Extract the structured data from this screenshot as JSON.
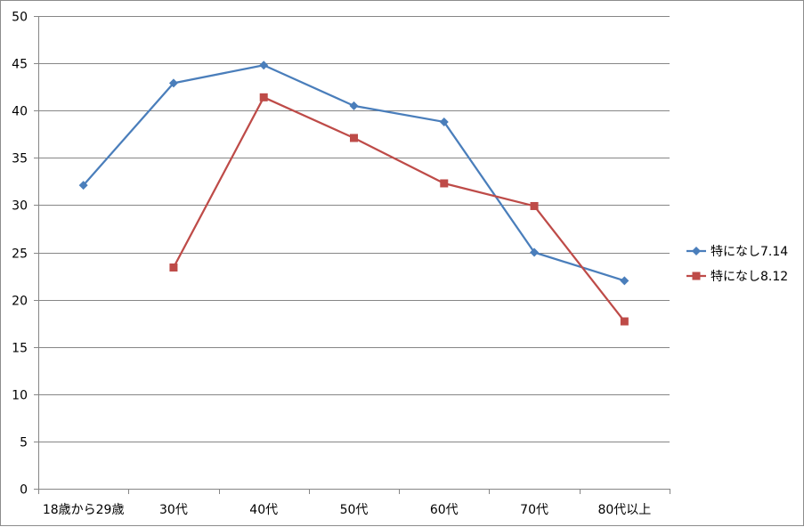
{
  "chart_data": {
    "type": "line",
    "categories": [
      "18歳から29歳",
      "30代",
      "40代",
      "50代",
      "60代",
      "70代",
      "80代以上"
    ],
    "series": [
      {
        "name": "特になし7.14",
        "color": "#4a7ebb",
        "marker": "diamond",
        "values": [
          32.1,
          42.9,
          44.8,
          40.5,
          38.8,
          25.0,
          22.0
        ]
      },
      {
        "name": "特になし8.12",
        "color": "#be4b48",
        "marker": "square",
        "values": [
          null,
          23.4,
          41.4,
          37.1,
          32.3,
          29.9,
          17.7
        ]
      }
    ],
    "ylim": [
      0,
      50
    ],
    "yticks": [
      0,
      5,
      10,
      15,
      20,
      25,
      30,
      35,
      40,
      45,
      50
    ],
    "grid": true,
    "legend_position": "right",
    "title": "",
    "xlabel": "",
    "ylabel": ""
  }
}
